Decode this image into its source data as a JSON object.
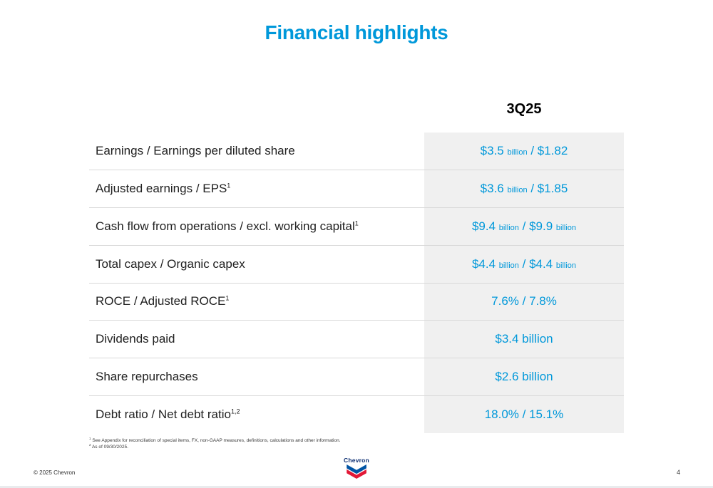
{
  "title": "Financial highlights",
  "table": {
    "column_header": "3Q25",
    "rows": [
      {
        "label": "Earnings / Earnings per diluted share",
        "sup": "",
        "value": [
          {
            "t": "$3.5 "
          },
          {
            "t": "billion",
            "small": true
          },
          {
            "t": " / $1.82"
          }
        ]
      },
      {
        "label": "Adjusted earnings / EPS",
        "sup": "1",
        "value": [
          {
            "t": "$3.6 "
          },
          {
            "t": "billion",
            "small": true
          },
          {
            "t": " / $1.85"
          }
        ]
      },
      {
        "label": "Cash flow from operations / excl. working capital",
        "sup": "1",
        "value": [
          {
            "t": "$9.4 "
          },
          {
            "t": "billion",
            "small": true
          },
          {
            "t": " / $9.9 "
          },
          {
            "t": "billion",
            "small": true
          }
        ]
      },
      {
        "label": "Total capex / Organic capex",
        "sup": "",
        "value": [
          {
            "t": "$4.4 "
          },
          {
            "t": "billion",
            "small": true
          },
          {
            "t": " / $4.4 "
          },
          {
            "t": "billion",
            "small": true
          }
        ]
      },
      {
        "label": "ROCE / Adjusted ROCE",
        "sup": "1",
        "value": [
          {
            "t": "7.6% / 7.8%"
          }
        ]
      },
      {
        "label": "Dividends paid",
        "sup": "",
        "value": [
          {
            "t": "$3.4 billion"
          }
        ]
      },
      {
        "label": "Share repurchases",
        "sup": "",
        "value": [
          {
            "t": "$2.6 billion"
          }
        ]
      },
      {
        "label": "Debt ratio / Net debt ratio",
        "sup": "1,2",
        "value": [
          {
            "t": "18.0% / 15.1%"
          }
        ]
      }
    ]
  },
  "footnotes": [
    {
      "sup": "1",
      "text": "See Appendix for reconciliation of special items, FX, non-GAAP measures, definitions, calculations and other information."
    },
    {
      "sup": "2",
      "text": "As of 09/30/2025."
    }
  ],
  "footer": {
    "copyright": "© 2025 Chevron",
    "page_number": "4",
    "logo_text": "Chevron"
  },
  "colors": {
    "accent_blue": "#0098da",
    "header_text": "#000000",
    "label_text": "#212121",
    "value_column_background": "#f0f0f0",
    "row_divider": "#d9d9d9",
    "logo_blue": "#0054a4",
    "logo_red": "#e21836"
  }
}
